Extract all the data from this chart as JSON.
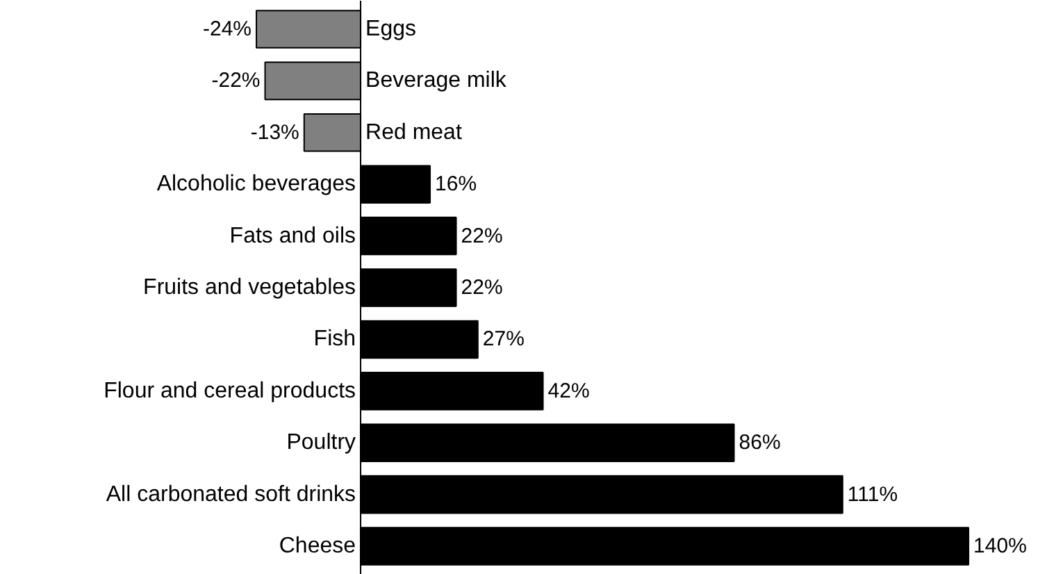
{
  "chart_data": {
    "type": "bar",
    "orientation": "horizontal",
    "categories": [
      "Eggs",
      "Beverage milk",
      "Red meat",
      "Alcoholic beverages",
      "Fats and oils",
      "Fruits and vegetables",
      "Fish",
      "Flour and cereal products",
      "Poultry",
      "All carbonated soft drinks",
      "Cheese"
    ],
    "values": [
      -24,
      -22,
      -13,
      16,
      22,
      22,
      27,
      42,
      86,
      111,
      140
    ],
    "colors": [
      "#808080",
      "#808080",
      "#808080",
      "#000000",
      "#000000",
      "#000000",
      "#000000",
      "#000000",
      "#000000",
      "#000000",
      "#000000"
    ],
    "value_labels": [
      "-24%",
      "-22%",
      "-13%",
      "16%",
      "22%",
      "22%",
      "27%",
      "42%",
      "86%",
      "111%",
      "140%"
    ],
    "grid": false
  }
}
